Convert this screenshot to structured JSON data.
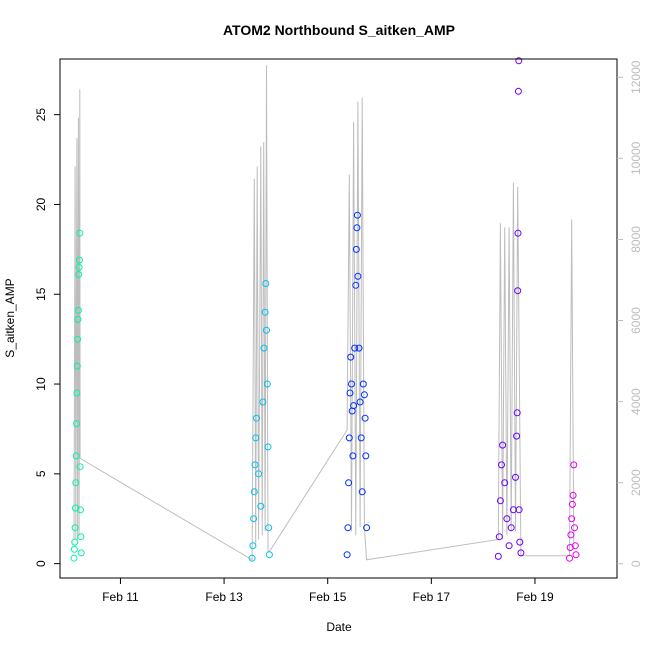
{
  "chart_data": {
    "type": "scatter",
    "title": "ATOM2 Northbound S_aitken_AMP",
    "xlabel": "Date",
    "ylabel": "S_aitken_AMP",
    "x_ticks": [
      {
        "date": "2024-02-11",
        "label": "Feb 11"
      },
      {
        "date": "2024-02-13",
        "label": "Feb 13"
      },
      {
        "date": "2024-02-15",
        "label": "Feb 15"
      },
      {
        "date": "2024-02-17",
        "label": "Feb 17"
      },
      {
        "date": "2024-02-19",
        "label": "Feb 19"
      }
    ],
    "xlim": [
      "2024-02-09T20:00",
      "2024-02-20T14:00"
    ],
    "ylim": [
      -0.8,
      28.1
    ],
    "y_ticks": [
      0,
      5,
      10,
      15,
      20,
      25
    ],
    "y2_ticks": [
      0,
      2000,
      4000,
      6000,
      8000,
      10000,
      12000
    ],
    "y2_lim": [
      -350,
      12450
    ],
    "axis_colors": {
      "primary": "#000000",
      "secondary": "#bdbdbd"
    },
    "grid": false,
    "legend": "none",
    "series": [
      {
        "color": "#00f5a8",
        "points": [
          [
            "2024-02-10T02:30",
            0.3
          ],
          [
            "2024-02-10T02:40",
            0.8
          ],
          [
            "2024-02-10T02:50",
            1.2
          ],
          [
            "2024-02-10T03:00",
            2.0
          ],
          [
            "2024-02-10T03:10",
            3.1
          ],
          [
            "2024-02-10T03:20",
            4.5
          ],
          [
            "2024-02-10T03:30",
            6.0
          ],
          [
            "2024-02-10T03:40",
            7.8
          ],
          [
            "2024-02-10T03:50",
            9.5
          ],
          [
            "2024-02-10T04:00",
            11.0
          ],
          [
            "2024-02-10T04:10",
            12.5
          ],
          [
            "2024-02-10T04:20",
            13.6
          ],
          [
            "2024-02-10T04:30",
            14.1
          ],
          [
            "2024-02-10T04:40",
            16.1
          ],
          [
            "2024-02-10T04:50",
            16.5
          ],
          [
            "2024-02-10T05:00",
            16.9
          ],
          [
            "2024-02-10T05:10",
            18.4
          ],
          [
            "2024-02-10T05:20",
            5.4
          ],
          [
            "2024-02-10T05:30",
            3.0
          ],
          [
            "2024-02-10T05:40",
            1.5
          ],
          [
            "2024-02-10T05:50",
            0.6
          ]
        ]
      },
      {
        "color": "#00c2f2",
        "points": [
          [
            "2024-02-13T13:00",
            0.3
          ],
          [
            "2024-02-13T13:20",
            1.0
          ],
          [
            "2024-02-13T13:40",
            2.5
          ],
          [
            "2024-02-13T14:00",
            4.0
          ],
          [
            "2024-02-13T14:20",
            5.5
          ],
          [
            "2024-02-13T14:40",
            7.0
          ],
          [
            "2024-02-13T15:00",
            8.1
          ],
          [
            "2024-02-13T16:00",
            5.0
          ],
          [
            "2024-02-13T17:00",
            3.2
          ],
          [
            "2024-02-13T18:00",
            9.0
          ],
          [
            "2024-02-13T18:30",
            12.0
          ],
          [
            "2024-02-13T19:00",
            14.0
          ],
          [
            "2024-02-13T19:20",
            15.6
          ],
          [
            "2024-02-13T19:40",
            13.0
          ],
          [
            "2024-02-13T20:00",
            10.0
          ],
          [
            "2024-02-13T20:20",
            6.5
          ],
          [
            "2024-02-13T20:40",
            2.0
          ],
          [
            "2024-02-13T21:00",
            0.5
          ]
        ]
      },
      {
        "color": "#0030ff",
        "points": [
          [
            "2024-02-15T09:00",
            0.5
          ],
          [
            "2024-02-15T09:20",
            2.0
          ],
          [
            "2024-02-15T09:40",
            4.5
          ],
          [
            "2024-02-15T10:00",
            7.0
          ],
          [
            "2024-02-15T10:20",
            9.5
          ],
          [
            "2024-02-15T10:40",
            11.5
          ],
          [
            "2024-02-15T11:00",
            10.0
          ],
          [
            "2024-02-15T11:20",
            8.5
          ],
          [
            "2024-02-15T11:40",
            6.0
          ],
          [
            "2024-02-15T12:00",
            8.8
          ],
          [
            "2024-02-15T12:30",
            12.0
          ],
          [
            "2024-02-15T13:00",
            15.5
          ],
          [
            "2024-02-15T13:15",
            17.5
          ],
          [
            "2024-02-15T13:30",
            18.7
          ],
          [
            "2024-02-15T13:45",
            19.4
          ],
          [
            "2024-02-15T14:00",
            16.0
          ],
          [
            "2024-02-15T14:30",
            12.0
          ],
          [
            "2024-02-15T15:00",
            9.0
          ],
          [
            "2024-02-15T15:30",
            7.0
          ],
          [
            "2024-02-15T16:00",
            4.0
          ],
          [
            "2024-02-15T16:30",
            10.0
          ],
          [
            "2024-02-15T17:00",
            9.4
          ],
          [
            "2024-02-15T17:20",
            8.1
          ],
          [
            "2024-02-15T17:40",
            6.0
          ],
          [
            "2024-02-15T18:00",
            2.0
          ]
        ]
      },
      {
        "color": "#6a00ff",
        "points": [
          [
            "2024-02-18T07:00",
            0.4
          ],
          [
            "2024-02-18T07:30",
            1.5
          ],
          [
            "2024-02-18T08:00",
            3.5
          ],
          [
            "2024-02-18T08:30",
            5.5
          ],
          [
            "2024-02-18T09:00",
            6.6
          ],
          [
            "2024-02-18T10:00",
            4.5
          ],
          [
            "2024-02-18T11:00",
            2.5
          ],
          [
            "2024-02-18T12:00",
            1.0
          ],
          [
            "2024-02-18T13:00",
            2.0
          ],
          [
            "2024-02-18T14:00",
            3.0
          ],
          [
            "2024-02-18T15:00",
            4.8
          ],
          [
            "2024-02-18T15:30",
            7.1
          ],
          [
            "2024-02-18T15:45",
            8.4
          ],
          [
            "2024-02-18T16:00",
            15.2
          ],
          [
            "2024-02-18T16:10",
            18.4
          ],
          [
            "2024-02-18T16:20",
            26.3
          ],
          [
            "2024-02-18T16:30",
            28.0
          ],
          [
            "2024-02-18T16:40",
            3.0
          ],
          [
            "2024-02-18T17:00",
            1.2
          ],
          [
            "2024-02-18T17:30",
            0.6
          ]
        ]
      },
      {
        "color": "#e600f0",
        "points": [
          [
            "2024-02-19T16:00",
            0.3
          ],
          [
            "2024-02-19T16:20",
            0.9
          ],
          [
            "2024-02-19T16:40",
            1.6
          ],
          [
            "2024-02-19T17:00",
            2.5
          ],
          [
            "2024-02-19T17:20",
            3.3
          ],
          [
            "2024-02-19T17:40",
            3.8
          ],
          [
            "2024-02-19T18:00",
            5.5
          ],
          [
            "2024-02-19T18:20",
            2.0
          ],
          [
            "2024-02-19T18:40",
            1.0
          ],
          [
            "2024-02-19T19:00",
            0.5
          ]
        ]
      }
    ],
    "secondary_series": {
      "color": "#bdbdbd",
      "type": "line",
      "points": [
        [
          "2024-02-10T02:30",
          600
        ],
        [
          "2024-02-10T03:00",
          9800
        ],
        [
          "2024-02-10T03:20",
          600
        ],
        [
          "2024-02-10T03:50",
          10500
        ],
        [
          "2024-02-10T04:10",
          600
        ],
        [
          "2024-02-10T04:30",
          11000
        ],
        [
          "2024-02-10T04:50",
          700
        ],
        [
          "2024-02-10T05:10",
          11700
        ],
        [
          "2024-02-10T05:20",
          2600
        ],
        [
          "2024-02-13T13:00",
          100
        ],
        [
          "2024-02-13T14:00",
          9500
        ],
        [
          "2024-02-13T14:40",
          500
        ],
        [
          "2024-02-13T15:20",
          9800
        ],
        [
          "2024-02-13T16:00",
          600
        ],
        [
          "2024-02-13T17:00",
          10300
        ],
        [
          "2024-02-13T17:40",
          700
        ],
        [
          "2024-02-13T18:20",
          10400
        ],
        [
          "2024-02-13T19:00",
          800
        ],
        [
          "2024-02-13T19:40",
          12300
        ],
        [
          "2024-02-13T20:20",
          300
        ],
        [
          "2024-02-13T21:00",
          300
        ],
        [
          "2024-02-15T09:00",
          3300
        ],
        [
          "2024-02-15T10:00",
          9600
        ],
        [
          "2024-02-15T11:00",
          800
        ],
        [
          "2024-02-15T12:00",
          10900
        ],
        [
          "2024-02-15T13:00",
          700
        ],
        [
          "2024-02-15T14:00",
          11400
        ],
        [
          "2024-02-15T15:00",
          900
        ],
        [
          "2024-02-15T16:00",
          11500
        ],
        [
          "2024-02-15T17:00",
          900
        ],
        [
          "2024-02-15T18:00",
          100
        ],
        [
          "2024-02-18T07:00",
          600
        ],
        [
          "2024-02-18T08:00",
          8400
        ],
        [
          "2024-02-18T09:00",
          600
        ],
        [
          "2024-02-18T10:00",
          8300
        ],
        [
          "2024-02-18T11:00",
          700
        ],
        [
          "2024-02-18T12:00",
          8300
        ],
        [
          "2024-02-18T13:00",
          800
        ],
        [
          "2024-02-18T14:00",
          9400
        ],
        [
          "2024-02-18T15:00",
          800
        ],
        [
          "2024-02-18T16:00",
          9300
        ],
        [
          "2024-02-18T17:30",
          200
        ],
        [
          "2024-02-19T16:00",
          200
        ],
        [
          "2024-02-19T17:00",
          8500
        ],
        [
          "2024-02-19T18:00",
          400
        ]
      ]
    }
  }
}
